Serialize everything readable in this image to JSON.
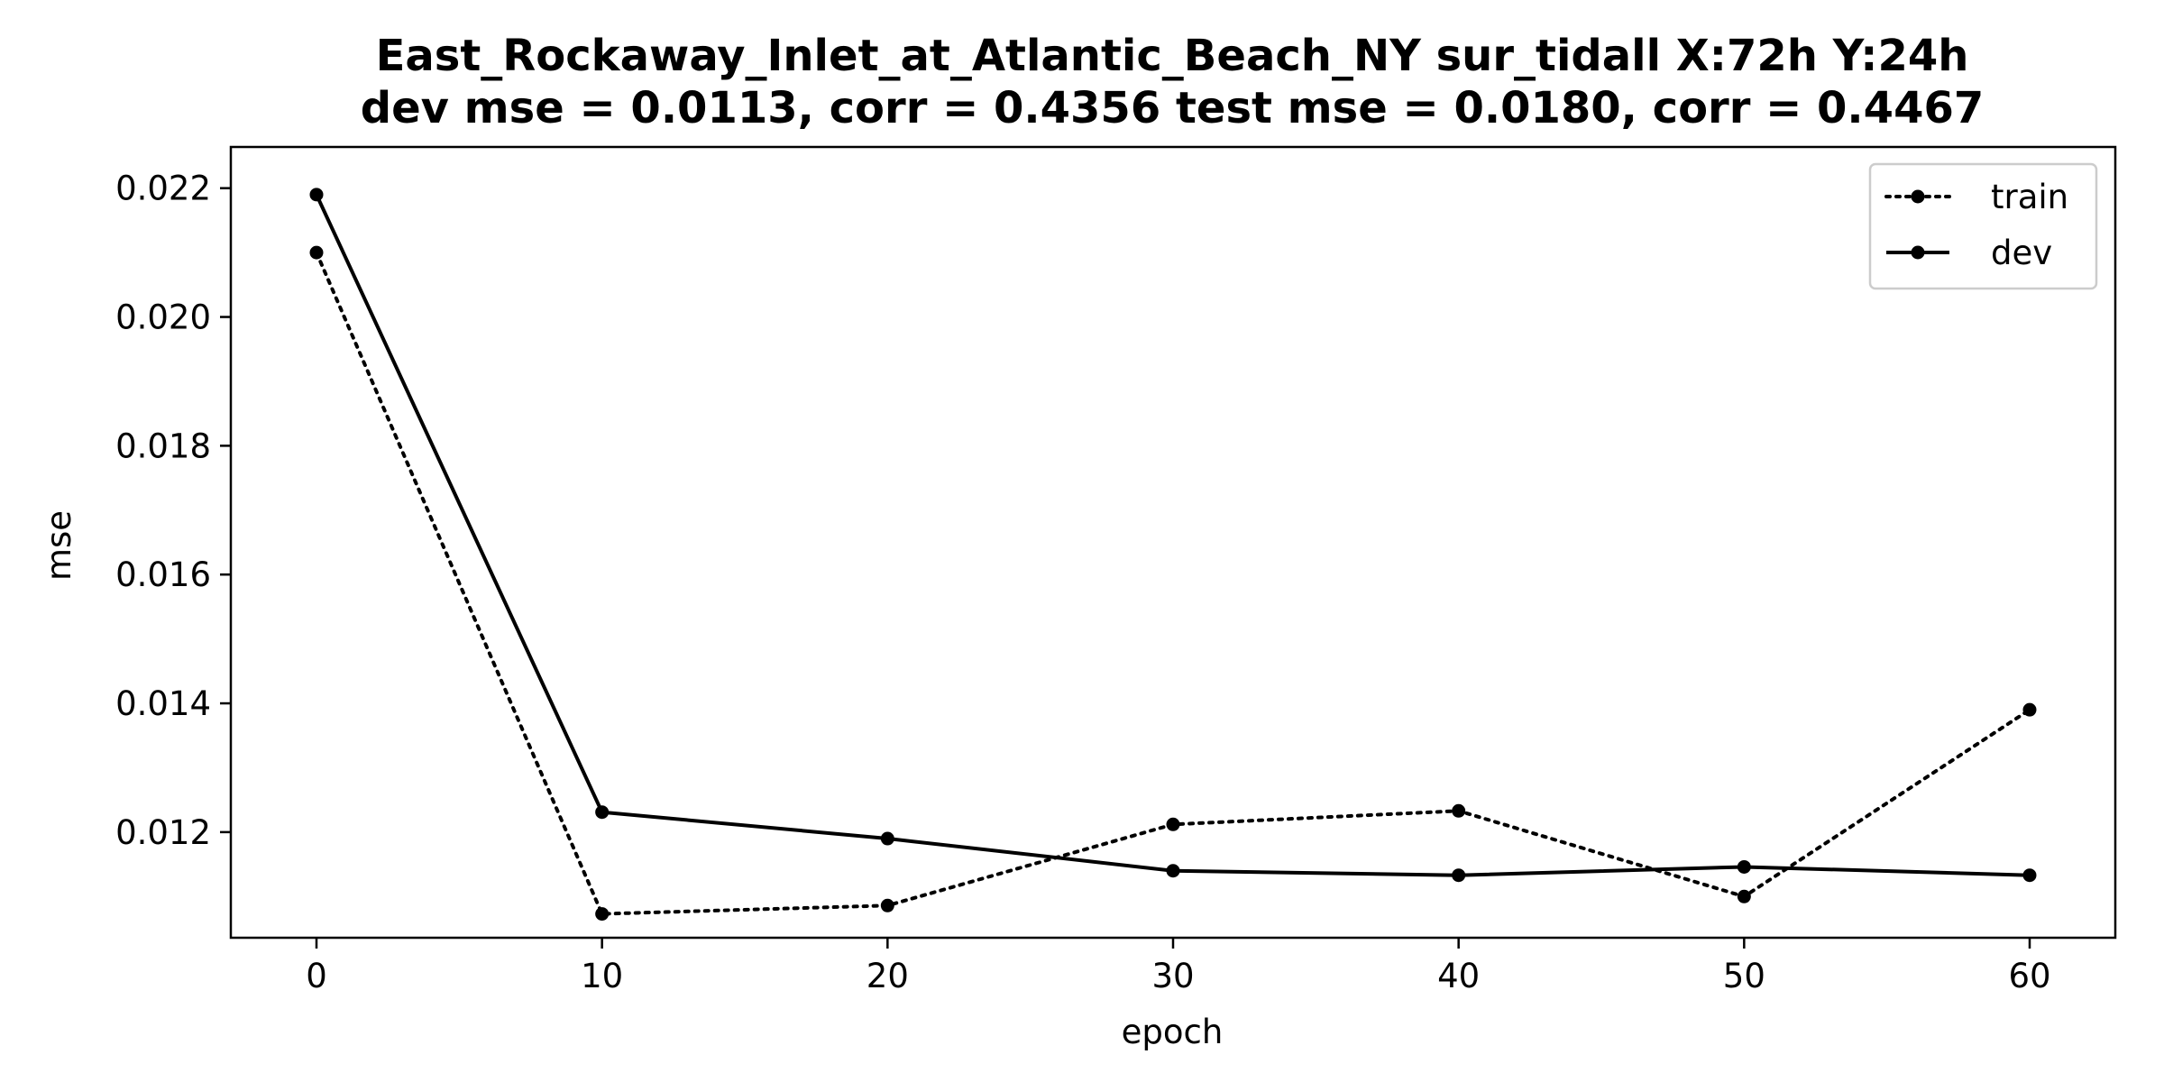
{
  "chart_data": {
    "type": "line",
    "title_line1": "East_Rockaway_Inlet_at_Atlantic_Beach_NY   sur_tidall   X:72h   Y:24h",
    "title_line2": "dev mse = 0.0113, corr = 0.4356   test mse = 0.0180, corr = 0.4467",
    "xlabel": "epoch",
    "ylabel": "mse",
    "x": [
      0,
      10,
      20,
      30,
      40,
      50,
      60
    ],
    "xticks": [
      0,
      10,
      20,
      30,
      40,
      50,
      60
    ],
    "xtick_labels": [
      "0",
      "10",
      "20",
      "30",
      "40",
      "50",
      "60"
    ],
    "yticks": [
      0.012,
      0.014,
      0.016,
      0.018,
      0.02,
      0.022
    ],
    "ytick_labels": [
      "0.012",
      "0.014",
      "0.016",
      "0.018",
      "0.020",
      "0.022"
    ],
    "xlim": [
      -3,
      63
    ],
    "ylim": [
      0.01036,
      0.02264
    ],
    "grid": false,
    "legend_position": "top-right",
    "series": [
      {
        "name": "train",
        "style": "dotted",
        "color": "#000000",
        "values": [
          0.021,
          0.01073,
          0.01086,
          0.01212,
          0.01233,
          0.011,
          0.0139
        ]
      },
      {
        "name": "dev",
        "style": "solid",
        "color": "#000000",
        "values": [
          0.0219,
          0.01231,
          0.0119,
          0.0114,
          0.01133,
          0.01146,
          0.01133
        ]
      }
    ]
  }
}
